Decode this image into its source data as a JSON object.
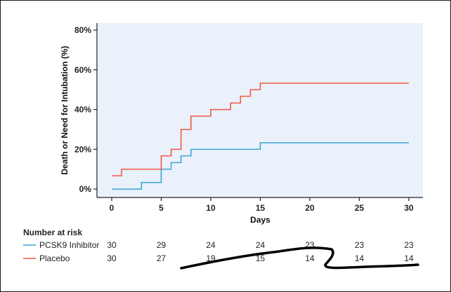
{
  "chart_data": {
    "type": "line",
    "subtype": "kaplan-meier-step",
    "title": "",
    "xlabel": "Days",
    "ylabel": "Death or Need for Intubation (%)",
    "xlim": [
      0,
      30
    ],
    "ylim": [
      0,
      80
    ],
    "xticks": [
      0,
      5,
      10,
      15,
      20,
      25,
      30
    ],
    "yticks": [
      0,
      20,
      40,
      60,
      80
    ],
    "ytick_labels": [
      "0%",
      "20%",
      "40%",
      "60%",
      "80%"
    ],
    "grid": false,
    "plot_background": "#eaf1fb",
    "series": [
      {
        "name": "PCSK9 Inhibitor",
        "color": "#3aa6d6",
        "steps": [
          [
            0,
            0
          ],
          [
            3,
            3.3
          ],
          [
            5,
            10
          ],
          [
            6,
            13.3
          ],
          [
            7,
            16.7
          ],
          [
            8,
            20
          ],
          [
            15,
            23.3
          ],
          [
            30,
            23.3
          ]
        ]
      },
      {
        "name": "Placebo",
        "color": "#ef5a43",
        "steps": [
          [
            0,
            6.7
          ],
          [
            1,
            10
          ],
          [
            5,
            16.7
          ],
          [
            6,
            20
          ],
          [
            7,
            30
          ],
          [
            8,
            36.7
          ],
          [
            10,
            40
          ],
          [
            12,
            43.3
          ],
          [
            13,
            46.7
          ],
          [
            14,
            50
          ],
          [
            15,
            53.3
          ],
          [
            30,
            53.3
          ]
        ]
      }
    ],
    "risk_table": {
      "title": "Number at risk",
      "times": [
        0,
        5,
        10,
        15,
        20,
        25,
        30
      ],
      "rows": [
        {
          "name": "PCSK9 Inhibitor",
          "color": "#3aa6d6",
          "values": [
            "30",
            "29",
            "24",
            "24",
            "23",
            "23",
            "23"
          ]
        },
        {
          "name": "Placebo",
          "color": "#ef5a43",
          "values": [
            "30",
            "27",
            "19",
            "15",
            "14",
            "14",
            "14"
          ]
        }
      ]
    }
  }
}
